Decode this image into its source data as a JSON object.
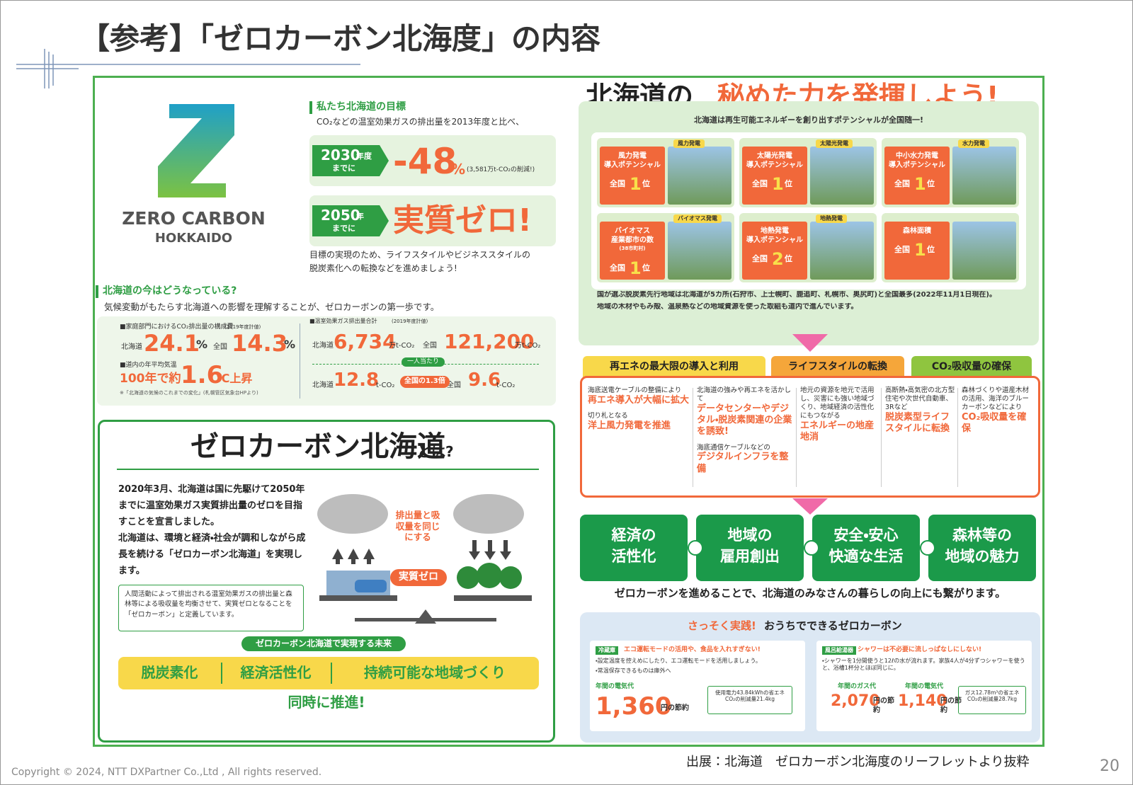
{
  "header": {
    "title": "【参考】「ゼロカーボン北海度」の内容"
  },
  "logo": {
    "name": "ZERO CARBON",
    "sub": "HOKKAIDO"
  },
  "goal": {
    "heading": "私たち北海道の目標",
    "intro": "CO₂などの温室効果ガスの排出量を2013年度と比べ、",
    "targets": [
      {
        "year": "2030",
        "year_unit": "年度",
        "by": "までに",
        "value": "-48",
        "unit": "%",
        "note": "(3,581万t-CO₂の削減!)"
      },
      {
        "year": "2050",
        "year_unit": "年",
        "by": "までに",
        "value": "実質ゼロ!"
      }
    ],
    "outro": [
      "目標の実現のため、ライフスタイルやビジネススタイルの",
      "脱炭素化への転換などを進めましょう!"
    ]
  },
  "now": {
    "heading": "北海道の今はどうなっている?",
    "text": "気候変動がもたらす北海道への影響を理解することが、ゼロカーボンの第一歩です。",
    "household": {
      "label": "■家庭部門におけるCO₂排出量の構成費",
      "note": "(2019年度計値)",
      "items": [
        {
          "label": "北海道",
          "value": "24.1",
          "unit": "%"
        },
        {
          "label": "全国",
          "value": "14.3",
          "unit": "%"
        }
      ]
    },
    "temperature": {
      "label": "■道内の年平均気温",
      "prefix": "100年で約",
      "value": "1.6",
      "unit": "℃上昇",
      "source": "※「北海道の気候のこれまでの変化」(札幌管区気象台HPより)"
    },
    "total": {
      "label": "■温室効果ガス排出量合計",
      "note": "(2019年度計値)",
      "items": [
        {
          "label": "北海道",
          "value": "6,734",
          "unit": "万t-CO₂"
        },
        {
          "label": "全国",
          "value": "121,200",
          "unit": "万t-CO₂"
        }
      ],
      "per_capita": "一人当たり",
      "per_items": [
        {
          "label": "北海道",
          "value": "12.8",
          "unit": "t-CO₂"
        },
        {
          "label": "全国",
          "value": "9.6",
          "unit": "t-CO₂"
        }
      ],
      "ratio": "全国の1.3倍"
    }
  },
  "about": {
    "title": "ゼロカーボン北海道",
    "title_suffix": "とは?",
    "paragraphs": [
      "2020年3月、北海道は国に先駆けて2050年までに温室効果ガス実質排出量のゼロを目指すことを宣言しました。",
      "北海道は、環境と経済・社会が調和しながら成長を続ける「ゼロカーボン北海道」を実現します。"
    ],
    "definition": "人間活動によって排出される温室効果ガスの排出量と森林等による吸収量を均衡させて、実質ゼロとなることを「ゼロカーボン」と定義しています。",
    "scale": {
      "emission": "排出量",
      "absorption": "吸収量",
      "balance": "排出量と吸収量を同じにする",
      "result": "実質ゼロ"
    },
    "future_heading": "ゼロカーボン北海道で実現する未来",
    "future": [
      "脱炭素化",
      "経済活性化",
      "持続可能な地域づくり"
    ],
    "together": "同時に推進!"
  },
  "potential": {
    "title_black": "北海道の",
    "title_orange": "秘めた力を発揮しよう!",
    "subtitle": "北海道は再生可能エネルギーを創り出すポテンシャルが全国随一!",
    "cards": [
      {
        "tag": "風力発電",
        "label": [
          "風力発電",
          "導入ポテンシャル"
        ],
        "rank_prefix": "全国",
        "rank": "1",
        "rank_suffix": "位"
      },
      {
        "tag": "太陽光発電",
        "label": [
          "太陽光発電",
          "導入ポテンシャル"
        ],
        "rank_prefix": "全国",
        "rank": "1",
        "rank_suffix": "位"
      },
      {
        "tag": "水力発電",
        "label": [
          "中小水力発電",
          "導入ポテンシャル"
        ],
        "rank_prefix": "全国",
        "rank": "1",
        "rank_suffix": "位"
      },
      {
        "tag": "バイオマス発電",
        "label": [
          "バイオマス",
          "産業都市の数",
          "(38市町村)"
        ],
        "rank_prefix": "全国",
        "rank": "1",
        "rank_suffix": "位"
      },
      {
        "tag": "地熱発電",
        "label": [
          "地熱発電",
          "導入ポテンシャル"
        ],
        "rank_prefix": "全国",
        "rank": "2",
        "rank_suffix": "位"
      },
      {
        "label": [
          "森林面積"
        ],
        "rank_prefix": "全国",
        "rank": "1",
        "rank_suffix": "位"
      }
    ],
    "notes": [
      "国が選ぶ脱炭素先行地域は北海道が5カ所(石狩市、上士幌町、鹿追町、札幌市、奥尻町)と全国最多(2022年11月1日現在)。",
      "地域の木材やもみ殻、温泉熱などの地域資源を使った取組も道内で進んでいます。"
    ]
  },
  "actions": {
    "tabs": [
      "再エネの最大限の導入と利用",
      "ライフスタイルの転換",
      "CO₂吸収量の確保"
    ],
    "columns": [
      [
        {
          "text": "海底送電ケーブルの整備により",
          "highlight": "再エネ導入が大幅に拡大"
        },
        {
          "text": "切り札となる",
          "highlight": "洋上風力発電を推進"
        }
      ],
      [
        {
          "text": "北海道の強みや再エネを活かして",
          "highlight": "データセンターやデジタル・脱炭素関連の企業を誘致!"
        },
        {
          "text": "海底通信ケーブルなどの",
          "highlight": "デジタルインフラを整備"
        }
      ],
      [
        {
          "text": "地元の資源を地元で活用し、災害にも強い地域づくり、地域経済の活性化にもつながる",
          "highlight": "エネルギーの地産地消"
        }
      ],
      [
        {
          "text": "高断熱・高気密の北方型住宅や次世代自動車、3Rなど",
          "highlight": "脱炭素型ライフスタイルに転換"
        }
      ],
      [
        {
          "text": "森林づくりや道産木材の活用、海洋のブルーカーボンなどにより",
          "highlight": "CO₂吸収量を確保"
        }
      ]
    ]
  },
  "benefits": {
    "items": [
      [
        "経済の",
        "活性化"
      ],
      [
        "地域の",
        "雇用創出"
      ],
      [
        "安全・安心",
        "快適な生活"
      ],
      [
        "森林等の",
        "地域の魅力"
      ]
    ],
    "summary": "ゼロカーボンを進めることで、北海道のみなさんの暮らしの向上にも繋がります。"
  },
  "home": {
    "title_prefix": "さっそく実践!",
    "title": "おうちでできるゼロカーボン",
    "cards": [
      {
        "tag": "冷蔵庫",
        "title": "エコ運転モードの活用や、食品を入れすぎない!",
        "points": [
          "・設定温度を控えめにしたり、エコ運転モードを活用しましょう。",
          "・常温保存できるものは庫外へ"
        ],
        "savings": [
          {
            "label": "年間の電気代",
            "value": "1,360",
            "unit": "円の節約"
          }
        ],
        "box": "使用電力43.84kWhの省エネ CO₂の削減量21.4kg"
      },
      {
        "tag": "風呂給湯器",
        "title": "シャワーは不必要に流しっぱなしにしない!",
        "points": [
          "・シャワーを1分間使うと12ℓの水が流れます。家族4人が4分ずつシャワーを使うと、浴槽1杯分とほぼ同じに。"
        ],
        "savings": [
          {
            "label": "年間のガス代",
            "value": "2,070",
            "unit": "円の節約"
          },
          {
            "label": "年間の電気代",
            "value": "1,140",
            "unit": "円の節約"
          }
        ],
        "box": "ガス12.78m³の省エネ CO₂の削減量28.7kg"
      }
    ]
  },
  "footer": {
    "source": "出展：北海道　ゼロカーボン北海度のリーフレットより抜粋",
    "copyright": "Copyright © 2024, NTT DXPartner Co.,Ltd , All rights reserved.",
    "page": "20"
  }
}
